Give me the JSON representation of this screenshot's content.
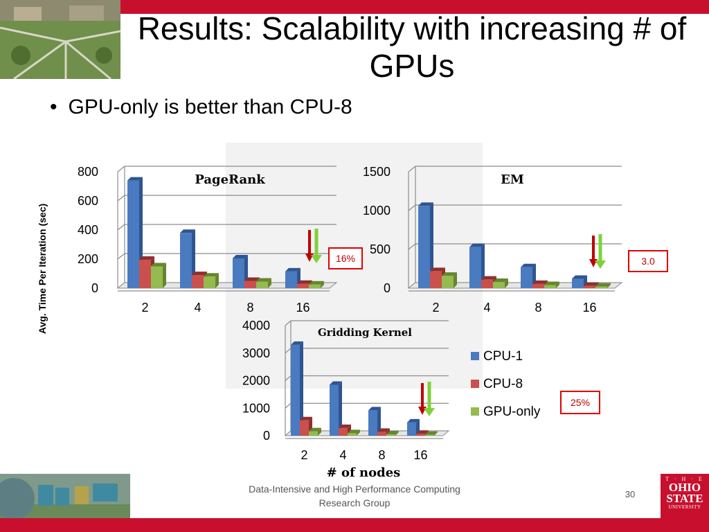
{
  "slide": {
    "title": "Results: Scalability with increasing # of GPUs",
    "bullet": "GPU-only is better than CPU-8",
    "footer": "Data-Intensive and High Performance Computing Research Group",
    "page_number": "30",
    "university_logo": {
      "line1": "T · H · E",
      "line2a": "OHIO",
      "line2b": "STATE",
      "line3": "UNIVERSITY"
    },
    "colors": {
      "accent_red": "#c8102e",
      "cpu1": "#4a7ac0",
      "cpu8": "#c9504d",
      "gpu": "#94ba50"
    }
  },
  "chart_data": {
    "shared": {
      "ylabel": "Avg. Time Per Iteration (sec)",
      "xlabel": "# of nodes",
      "legend": [
        "CPU-1",
        "CPU-8",
        "GPU-only"
      ],
      "legend_position": "right"
    },
    "charts": [
      {
        "type": "bar",
        "title": "PageRank",
        "categories": [
          "2",
          "4",
          "8",
          "16"
        ],
        "series": [
          {
            "name": "CPU-1",
            "values": [
              740,
              380,
              205,
              115
            ]
          },
          {
            "name": "CPU-8",
            "values": [
              195,
              90,
              50,
              30
            ]
          },
          {
            "name": "GPU-only",
            "values": [
              150,
              80,
              45,
              25
            ]
          }
        ],
        "ylim": [
          0,
          800
        ],
        "yticks": [
          0,
          200,
          400,
          600,
          800
        ],
        "annotation": "16%"
      },
      {
        "type": "bar",
        "title": "EM",
        "categories": [
          "2",
          "4",
          "8",
          "16"
        ],
        "series": [
          {
            "name": "CPU-1",
            "values": [
              1060,
              530,
              270,
              120
            ]
          },
          {
            "name": "CPU-8",
            "values": [
              220,
              110,
              55,
              30
            ]
          },
          {
            "name": "GPU-only",
            "values": [
              160,
              80,
              40,
              20
            ]
          }
        ],
        "ylim": [
          0,
          1500
        ],
        "yticks": [
          0,
          500,
          1000,
          1500
        ],
        "annotation": "3.0"
      },
      {
        "type": "bar",
        "title": "Gridding Kernel",
        "categories": [
          "2",
          "4",
          "8",
          "16"
        ],
        "series": [
          {
            "name": "CPU-1",
            "values": [
              3300,
              1850,
              920,
              480
            ]
          },
          {
            "name": "CPU-8",
            "values": [
              560,
              280,
              140,
              70
            ]
          },
          {
            "name": "GPU-only",
            "values": [
              160,
              90,
              50,
              30
            ]
          }
        ],
        "ylim": [
          0,
          4000
        ],
        "yticks": [
          0,
          1000,
          2000,
          3000,
          4000
        ],
        "annotation": "25%"
      }
    ]
  }
}
